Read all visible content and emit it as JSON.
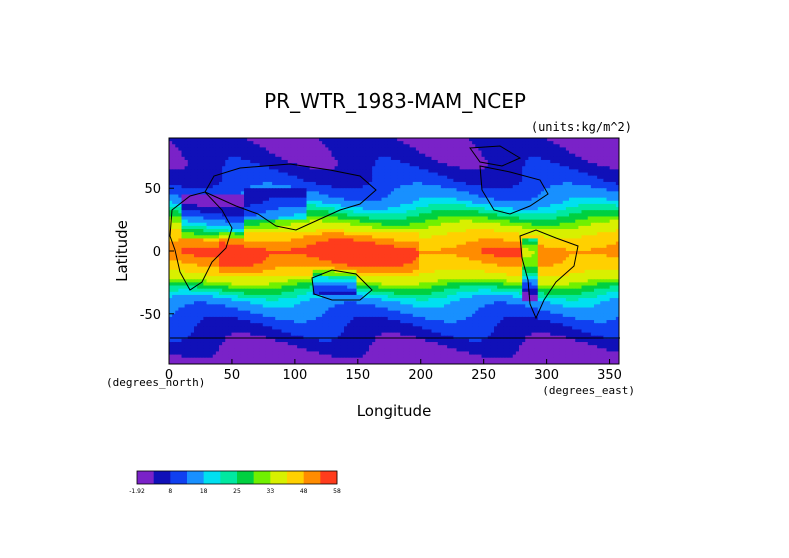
{
  "chart_data": {
    "type": "heatmap",
    "title": "PR_WTR_1983-MAM_NCEP",
    "units": "(units:kg/m^2)",
    "xlabel": "Longitude",
    "ylabel": "Latitude",
    "x_units_label": "(degrees_east)",
    "y_units_label": "(degrees_north)",
    "xlim": [
      0,
      357.5
    ],
    "ylim": [
      -90,
      90
    ],
    "x_ticks": [
      0,
      50,
      100,
      150,
      200,
      250,
      300,
      350
    ],
    "y_ticks": [
      -50,
      0,
      50
    ],
    "colorbar": {
      "labels": [
        "-1.92",
        "8",
        "18",
        "25",
        "33",
        "48",
        "58"
      ],
      "label_positions": [
        0,
        2,
        4,
        6,
        8,
        10,
        12
      ],
      "colors": [
        "#7a22c8",
        "#1010b8",
        "#1040f0",
        "#1890ff",
        "#00e0f0",
        "#00e8a0",
        "#00d040",
        "#70f000",
        "#d8f000",
        "#ffd000",
        "#ff8c00",
        "#ff3c1c"
      ]
    },
    "zonal_mean_profile": {
      "lat": [
        -90,
        -70,
        -55,
        -40,
        -30,
        -20,
        -10,
        0,
        10,
        20,
        30,
        40,
        55,
        70,
        90
      ],
      "values": [
        -1.92,
        5,
        10,
        17,
        26,
        38,
        48,
        52,
        44,
        33,
        24,
        16,
        9,
        5,
        3
      ]
    }
  }
}
